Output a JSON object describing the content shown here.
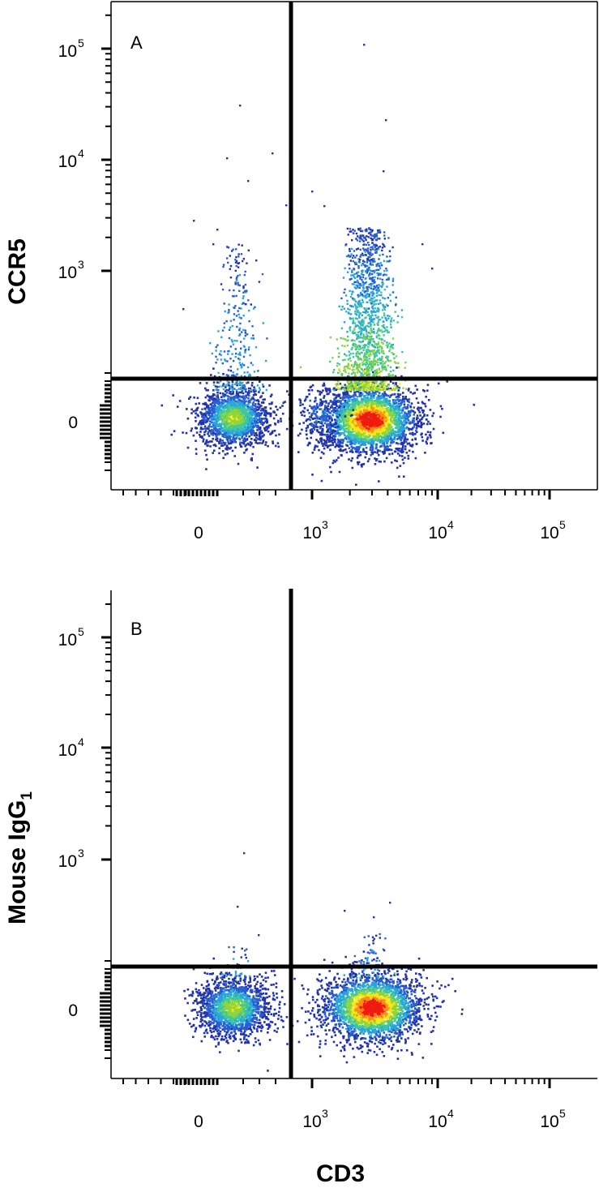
{
  "chart_data": [
    {
      "type": "scatter",
      "subtype": "flow-cytometry-density-plot",
      "panel_label": "A",
      "xlabel": "",
      "ylabel": "CCR5",
      "x_scale": "biexponential",
      "y_scale": "biexponential",
      "x_ticks": [
        {
          "value": 0,
          "base": "0",
          "exp": ""
        },
        {
          "value": 1000,
          "base": "10",
          "exp": "3"
        },
        {
          "value": 10000,
          "base": "10",
          "exp": "4"
        },
        {
          "value": 100000,
          "base": "10",
          "exp": "5"
        }
      ],
      "y_ticks": [
        {
          "value": 0,
          "base": "0",
          "exp": ""
        },
        {
          "value": 1000,
          "base": "10",
          "exp": "3"
        },
        {
          "value": 10000,
          "base": "10",
          "exp": "4"
        },
        {
          "value": 100000,
          "base": "10",
          "exp": "5"
        }
      ],
      "quadrant_gate": {
        "x": 600,
        "y": 300
      },
      "populations": [
        {
          "center_x": 150,
          "center_y": 0,
          "relative_density": 0.6,
          "description": "CD3- CCR5-"
        },
        {
          "center_x": 2500,
          "center_y": 0,
          "relative_density": 1.0,
          "description": "CD3+ CCR5-"
        },
        {
          "center_x": 2500,
          "center_y": 700,
          "relative_density": 0.45,
          "description": "CD3+ CCR5+"
        },
        {
          "center_x": 200,
          "center_y": 600,
          "relative_density": 0.1,
          "description": "CD3- CCR5+"
        }
      ],
      "grid": false,
      "legend": "none"
    },
    {
      "type": "scatter",
      "subtype": "flow-cytometry-density-plot",
      "panel_label": "B",
      "xlabel": "CD3",
      "ylabel": "Mouse IgG",
      "ylabel_subscript": "1",
      "x_scale": "biexponential",
      "y_scale": "biexponential",
      "x_ticks": [
        {
          "value": 0,
          "base": "0",
          "exp": ""
        },
        {
          "value": 1000,
          "base": "10",
          "exp": "3"
        },
        {
          "value": 10000,
          "base": "10",
          "exp": "4"
        },
        {
          "value": 100000,
          "base": "10",
          "exp": "5"
        }
      ],
      "y_ticks": [
        {
          "value": 0,
          "base": "0",
          "exp": ""
        },
        {
          "value": 1000,
          "base": "10",
          "exp": "3"
        },
        {
          "value": 10000,
          "base": "10",
          "exp": "4"
        },
        {
          "value": 100000,
          "base": "10",
          "exp": "5"
        }
      ],
      "quadrant_gate": {
        "x": 600,
        "y": 300
      },
      "populations": [
        {
          "center_x": 150,
          "center_y": 0,
          "relative_density": 0.6,
          "description": "CD3- isotype-"
        },
        {
          "center_x": 2500,
          "center_y": 0,
          "relative_density": 1.0,
          "description": "CD3+ isotype-"
        }
      ],
      "grid": false,
      "legend": "none"
    }
  ],
  "colormap": [
    "#2233aa",
    "#2a5fd0",
    "#28a4dc",
    "#3cc7a0",
    "#8fd43a",
    "#f3e91a",
    "#ff8a16",
    "#f01a10"
  ]
}
